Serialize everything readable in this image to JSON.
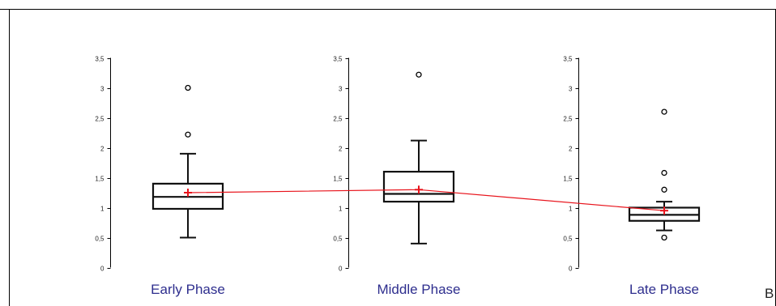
{
  "chart_data": {
    "type": "box",
    "ylim": [
      0,
      3.5
    ],
    "y_ticks": [
      "0",
      "0,5",
      "1",
      "1,5",
      "2",
      "2,5",
      "3",
      "3,5"
    ],
    "panel_letter": "B",
    "mean_line_color": "#e8141c",
    "box_color": "#111111",
    "label_color": "#2e2e8e",
    "groups": [
      {
        "label": "Early Phase",
        "whisker_min": 0.5,
        "q1": 0.98,
        "median": 1.18,
        "q3": 1.4,
        "whisker_max": 1.9,
        "mean": 1.25,
        "outliers": [
          2.22,
          3.0
        ]
      },
      {
        "label": "Middle Phase",
        "whisker_min": 0.4,
        "q1": 1.1,
        "median": 1.23,
        "q3": 1.6,
        "whisker_max": 2.12,
        "mean": 1.3,
        "outliers": [
          3.22
        ]
      },
      {
        "label": "Late Phase",
        "whisker_min": 0.62,
        "q1": 0.78,
        "median": 0.88,
        "q3": 1.0,
        "whisker_max": 1.1,
        "mean": 0.95,
        "outliers": [
          0.5,
          1.3,
          1.58,
          2.6
        ]
      }
    ]
  }
}
